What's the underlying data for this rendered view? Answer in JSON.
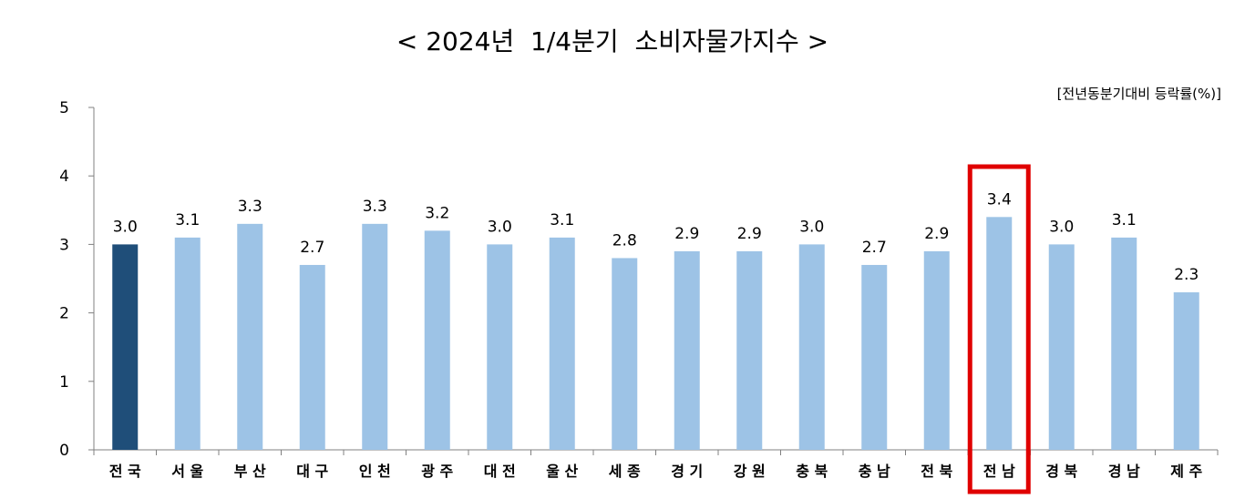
{
  "chart_data": {
    "type": "bar",
    "title": "< 2024년  1/4분기  소비자물가지수 >",
    "unit_label": "[전년동분기대비 등락률(%)]",
    "xlabel": "",
    "ylabel": "",
    "ylim": [
      0,
      5
    ],
    "yticks": [
      0,
      1,
      2,
      3,
      4,
      5
    ],
    "grid": false,
    "categories": [
      "전국",
      "서울",
      "부산",
      "대구",
      "인천",
      "광주",
      "대전",
      "울산",
      "세종",
      "경기",
      "강원",
      "충북",
      "충남",
      "전북",
      "전남",
      "경북",
      "경남",
      "제주"
    ],
    "values": [
      3.0,
      3.1,
      3.3,
      2.7,
      3.3,
      3.2,
      3.0,
      3.1,
      2.8,
      2.9,
      2.9,
      3.0,
      2.7,
      2.9,
      3.4,
      3.0,
      3.1,
      2.3
    ],
    "value_labels": [
      "3.0",
      "3.1",
      "3.3",
      "2.7",
      "3.3",
      "3.2",
      "3.0",
      "3.1",
      "2.8",
      "2.9",
      "2.9",
      "3.0",
      "2.7",
      "2.9",
      "3.4",
      "3.0",
      "3.1",
      "2.3"
    ],
    "highlight_dark_category": "전국",
    "highlight_box_category": "전남",
    "colors": {
      "bar": "#9dc3e6",
      "bar_dark": "#1f4e79",
      "axis": "#808080",
      "highlight_box": "#e00000"
    }
  }
}
